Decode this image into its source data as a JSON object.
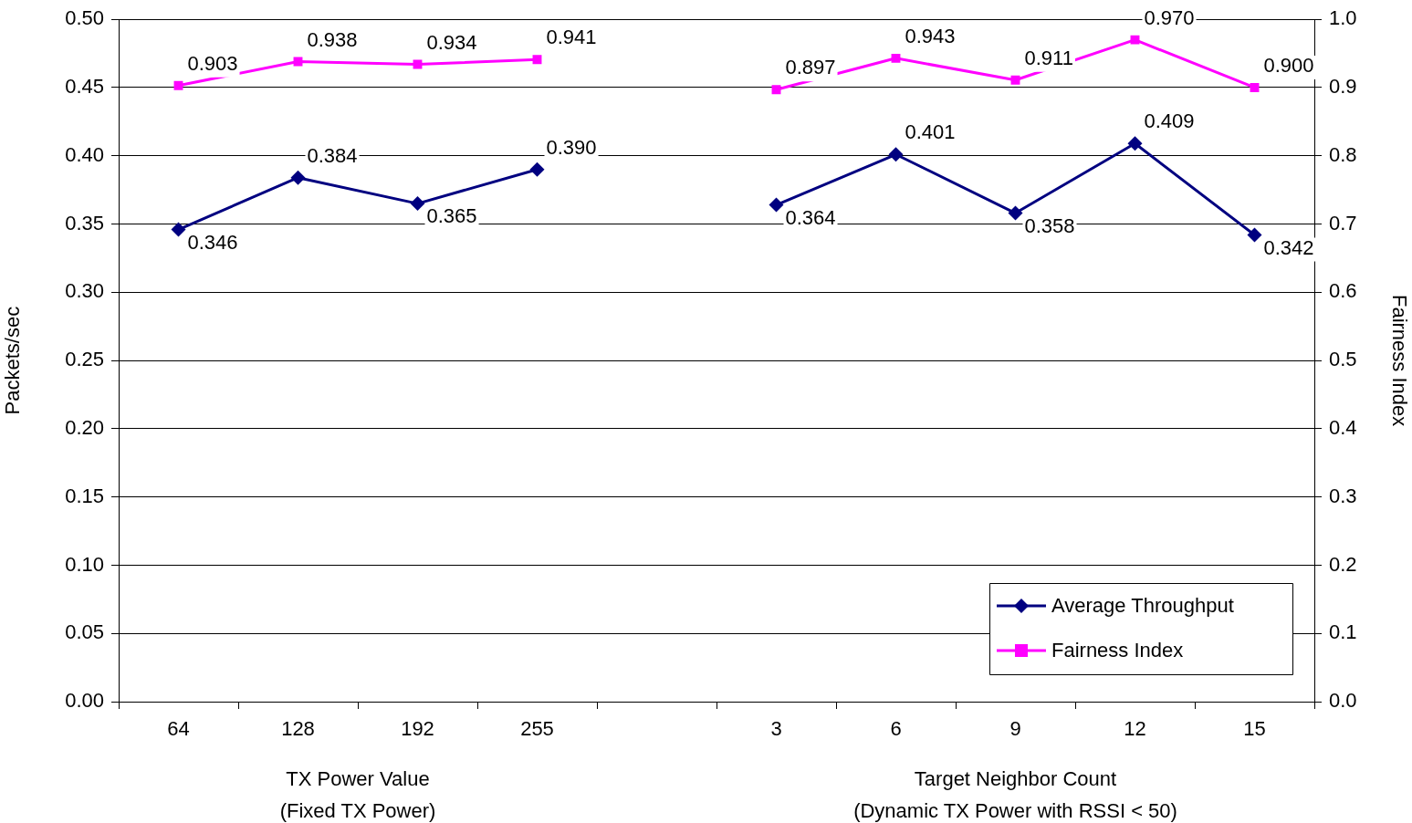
{
  "chart_data": {
    "type": "line",
    "categories": [
      "64",
      "128",
      "192",
      "255",
      null,
      "3",
      "6",
      "9",
      "12",
      "15"
    ],
    "series": [
      {
        "name": "Average Throughput",
        "color": "#000080",
        "marker": "diamond",
        "values": [
          0.346,
          0.384,
          0.365,
          0.39,
          null,
          0.364,
          0.401,
          0.358,
          0.409,
          0.342
        ],
        "value_labels": [
          "0.346",
          "0.384",
          "0.365",
          "0.390",
          null,
          "0.364",
          "0.401",
          "0.358",
          "0.409",
          "0.342"
        ]
      },
      {
        "name": "Fairness Index",
        "color": "#ff00ff",
        "marker": "square",
        "axis": "y2",
        "values": [
          0.903,
          0.938,
          0.934,
          0.941,
          null,
          0.897,
          0.943,
          0.911,
          0.97,
          0.9
        ],
        "value_labels": [
          "0.903",
          "0.938",
          "0.934",
          "0.941",
          null,
          "0.897",
          "0.943",
          "0.911",
          "0.970",
          "0.900"
        ]
      }
    ],
    "ylabel": "Packets/sec",
    "y2label": "Fairness Index",
    "ylim": [
      0,
      0.5
    ],
    "yticks": [
      {
        "value": 0,
        "label": "0.00"
      },
      {
        "value": 0.05,
        "label": "0.05"
      },
      {
        "value": 0.1,
        "label": "0.10"
      },
      {
        "value": 0.15,
        "label": "0.15"
      },
      {
        "value": 0.2,
        "label": "0.20"
      },
      {
        "value": 0.25,
        "label": "0.25"
      },
      {
        "value": 0.3,
        "label": "0.30"
      },
      {
        "value": 0.35,
        "label": "0.35"
      },
      {
        "value": 0.4,
        "label": "0.40"
      },
      {
        "value": 0.45,
        "label": "0.45"
      },
      {
        "value": 0.5,
        "label": "0.50"
      }
    ],
    "y2lim": [
      0,
      1
    ],
    "y2ticks": [
      {
        "value": 0,
        "label": "0.0"
      },
      {
        "value": 0.1,
        "label": "0.1"
      },
      {
        "value": 0.2,
        "label": "0.2"
      },
      {
        "value": 0.3,
        "label": "0.3"
      },
      {
        "value": 0.4,
        "label": "0.4"
      },
      {
        "value": 0.5,
        "label": "0.5"
      },
      {
        "value": 0.6,
        "label": "0.6"
      },
      {
        "value": 0.7,
        "label": "0.7"
      },
      {
        "value": 0.8,
        "label": "0.8"
      },
      {
        "value": 0.9,
        "label": "0.9"
      },
      {
        "value": 1,
        "label": "1.0"
      }
    ],
    "annotations": [
      "TX Power Value\n(Fixed TX Power)",
      "Target Neighbor Count\n(Dynamic TX Power with RSSI < 50)"
    ],
    "grid": "y",
    "legend": "bottom right",
    "line_style": "solid"
  }
}
